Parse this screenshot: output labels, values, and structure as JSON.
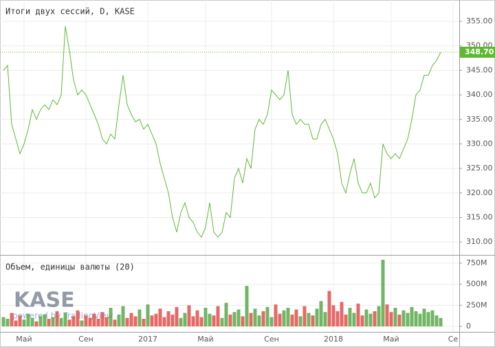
{
  "chart_data": {
    "type": "line",
    "categories": [
      null,
      null,
      null,
      null,
      null,
      "Май",
      null,
      null,
      null,
      null,
      null,
      null,
      null,
      null,
      null,
      null,
      null,
      null,
      null,
      null,
      "Сен",
      null,
      null,
      null,
      null,
      null,
      null,
      null,
      null,
      null,
      null,
      null,
      null,
      null,
      null,
      "2017",
      null,
      null,
      null,
      null,
      null,
      null,
      null,
      null,
      null,
      null,
      null,
      null,
      null,
      "Май",
      null,
      null,
      null,
      null,
      null,
      null,
      null,
      null,
      null,
      null,
      null,
      null,
      null,
      null,
      null,
      "Сен",
      null,
      null,
      null,
      null,
      null,
      null,
      null,
      null,
      null,
      null,
      null,
      null,
      null,
      null,
      "2018",
      null,
      null,
      null,
      null,
      null,
      null,
      null,
      null,
      null,
      null,
      null,
      null,
      null,
      "Май",
      null,
      null,
      null,
      null,
      null,
      null,
      null,
      null,
      null,
      null,
      null,
      null,
      null,
      null,
      "Се"
    ],
    "series": [
      {
        "name": "Итоги двух сессий, D, KASE",
        "color": "#5fb832",
        "values": [
          345,
          346,
          334,
          331,
          328,
          330,
          333,
          337,
          335,
          337,
          338,
          337,
          339,
          338,
          340,
          354,
          349,
          343,
          340,
          341,
          340,
          338,
          336,
          334,
          331,
          330,
          332,
          331,
          338,
          344,
          338,
          336,
          334.5,
          335,
          333,
          334,
          332,
          330,
          326,
          323,
          320,
          315,
          312,
          316,
          318,
          315,
          314,
          312,
          311,
          313,
          318,
          312,
          311,
          312,
          316,
          315,
          323,
          325,
          322,
          327,
          325,
          333,
          335,
          334,
          336,
          341,
          340,
          339,
          340,
          345,
          336,
          334,
          335,
          334,
          334,
          331,
          331,
          334,
          335,
          333,
          331,
          328,
          322,
          320,
          324,
          327,
          322,
          320,
          320,
          322,
          319,
          320,
          330,
          328,
          327,
          328,
          327,
          329,
          331,
          335,
          340,
          341,
          344,
          344,
          346,
          347,
          348.7,
          null,
          null,
          null
        ]
      },
      {
        "name": "Объем, единицы валюты (20)",
        "axis": "y2",
        "type": "bar",
        "up_color": "#58a84a",
        "down_color": "#e0504a",
        "values": [
          110000000.0,
          90000000.0,
          160000000.0,
          70000000.0,
          130000000.0,
          80000000.0,
          150000000.0,
          100000000.0,
          60000000.0,
          120000000.0,
          140000000.0,
          90000000.0,
          110000000.0,
          180000000.0,
          100000000.0,
          160000000.0,
          80000000.0,
          120000000.0,
          190000000.0,
          70000000.0,
          130000000.0,
          100000000.0,
          150000000.0,
          90000000.0,
          170000000.0,
          110000000.0,
          220000000.0,
          80000000.0,
          140000000.0,
          240000000.0,
          100000000.0,
          160000000.0,
          120000000.0,
          200000000.0,
          90000000.0,
          260000000.0,
          130000000.0,
          150000000.0,
          210000000.0,
          110000000.0,
          180000000.0,
          140000000.0,
          230000000.0,
          100000000.0,
          160000000.0,
          250000000.0,
          120000000.0,
          190000000.0,
          110000000.0,
          220000000.0,
          150000000.0,
          130000000.0,
          240000000.0,
          100000000.0,
          280000000.0,
          140000000.0,
          170000000.0,
          200000000.0,
          120000000.0,
          480000000.0,
          160000000.0,
          210000000.0,
          130000000.0,
          180000000.0,
          230000000.0,
          110000000.0,
          260000000.0,
          150000000.0,
          190000000.0,
          220000000.0,
          140000000.0,
          200000000.0,
          120000000.0,
          240000000.0,
          160000000.0,
          130000000.0,
          210000000.0,
          300000000.0,
          170000000.0,
          420000000.0,
          250000000.0,
          180000000.0,
          290000000.0,
          140000000.0,
          220000000.0,
          160000000.0,
          270000000.0,
          130000000.0,
          200000000.0,
          150000000.0,
          180000000.0,
          240000000.0,
          790000000.0,
          260000000.0,
          170000000.0,
          220000000.0,
          140000000.0,
          190000000.0,
          160000000.0,
          230000000.0,
          180000000.0,
          150000000.0,
          210000000.0,
          170000000.0,
          190000000.0,
          130000000.0,
          100000000.0,
          null,
          null,
          null
        ]
      }
    ],
    "ylim": [
      307.5,
      359.35
    ],
    "yticks": [
      {
        "value": 310,
        "label": "310.00"
      },
      {
        "value": 315,
        "label": "315.00"
      },
      {
        "value": 320,
        "label": "320.00"
      },
      {
        "value": 325,
        "label": "325.00"
      },
      {
        "value": 330,
        "label": "330.00"
      },
      {
        "value": 335,
        "label": "335.00"
      },
      {
        "value": 340,
        "label": "340.00"
      },
      {
        "value": 345,
        "label": "345.00"
      },
      {
        "value": 350,
        "label": "350.00"
      },
      {
        "value": 355,
        "label": "355.00"
      }
    ],
    "y2lim": [
      -65000000.0,
      839000000.0
    ],
    "y2ticks": [
      0,
      {
        "value": 250000000.0,
        "label": "250M"
      },
      {
        "value": 500000000.0,
        "label": "500M"
      },
      {
        "value": 750000000.0,
        "label": "750M"
      }
    ],
    "price_line": {
      "value": 348.7,
      "label": "348.70"
    },
    "grid": true,
    "watermark": {
      "logo": "KASE",
      "powered": "powered by TradingView"
    }
  }
}
